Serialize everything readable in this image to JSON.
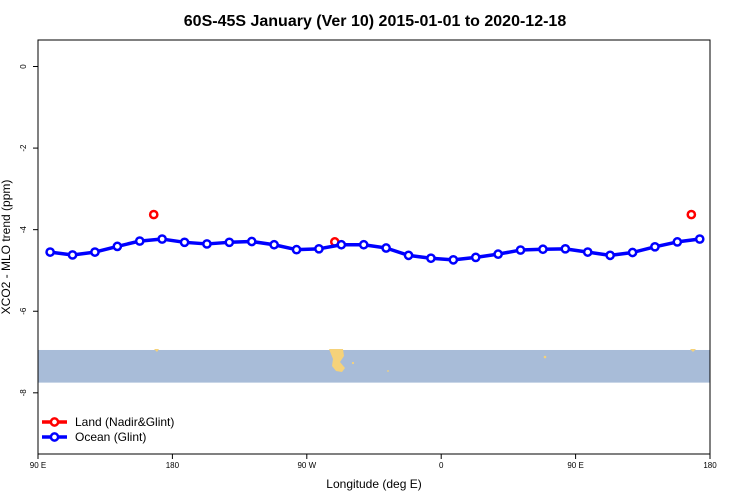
{
  "chart_data": {
    "type": "line",
    "title": "60S-45S January (Ver 10)   2015-01-01 to 2020-12-18",
    "xlabel": "Longitude (deg E)",
    "ylabel": "XCO2 - MLO trend (ppm)",
    "xlim": [
      90,
      450
    ],
    "ylim": [
      -9.5,
      0.65
    ],
    "x_ticks": [
      {
        "value": 90,
        "label": "90 E"
      },
      {
        "value": 162,
        "label": "180"
      },
      {
        "value": 234,
        "label": "90 W"
      },
      {
        "value": 306,
        "label": "0"
      },
      {
        "value": 378,
        "label": "90 E"
      },
      {
        "value": 450,
        "label": "180"
      }
    ],
    "y_ticks": [
      {
        "value": 0,
        "label": "0"
      },
      {
        "value": -2,
        "label": "-2"
      },
      {
        "value": -4,
        "label": "-4"
      },
      {
        "value": -6,
        "label": "-6"
      },
      {
        "value": -8,
        "label": "-8"
      }
    ],
    "grid": false,
    "legend_position": "bottom-left",
    "series": [
      {
        "name": "Land (Nadir&Glint)",
        "color": "#ff0000",
        "line": false,
        "x": [
          152,
          249,
          440
        ],
        "y": [
          -3.63,
          -4.3,
          -3.63
        ]
      },
      {
        "name": "Ocean (Glint)",
        "color": "#0000ff",
        "line": true,
        "x": [
          96.5,
          108.5,
          120.5,
          132.5,
          144.5,
          156.5,
          168.5,
          180.5,
          192.5,
          204.5,
          216.5,
          228.5,
          240.5,
          252.5,
          264.5,
          276.5,
          288.5,
          300.5,
          312.5,
          324.5,
          336.5,
          348.5,
          360.5,
          372.5,
          384.5,
          396.5,
          408.5,
          420.5,
          432.5,
          444.5
        ],
        "y": [
          -4.55,
          -4.62,
          -4.55,
          -4.41,
          -4.28,
          -4.23,
          -4.31,
          -4.35,
          -4.31,
          -4.29,
          -4.37,
          -4.49,
          -4.47,
          -4.37,
          -4.37,
          -4.45,
          -4.63,
          -4.7,
          -4.74,
          -4.68,
          -4.6,
          -4.5,
          -4.48,
          -4.47,
          -4.55,
          -4.63,
          -4.56,
          -4.42,
          -4.3,
          -4.23
        ]
      }
    ],
    "map_band": {
      "y_range": [
        -7.75,
        -6.95
      ],
      "ocean_color": "#a8bcd8",
      "land_color": "#f5d27a"
    }
  }
}
